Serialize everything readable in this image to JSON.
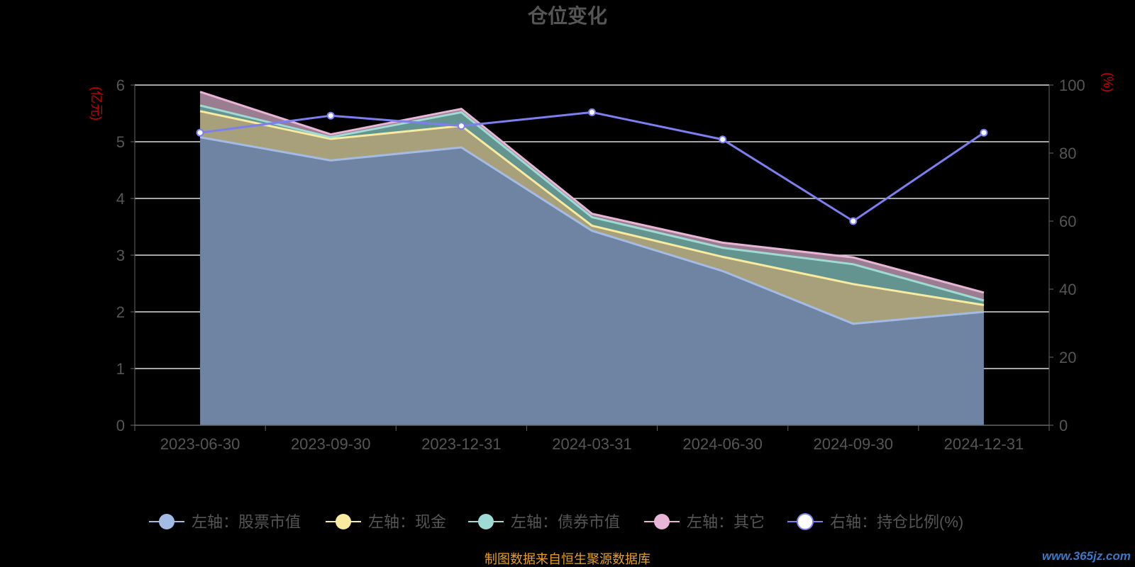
{
  "chart_data": {
    "type": "area",
    "title": "仓位变化",
    "ylabel_left": "(亿元)",
    "ylabel_right": "(%)",
    "categories": [
      "2023-06-30",
      "2023-09-30",
      "2023-12-31",
      "2024-03-31",
      "2024-06-30",
      "2024-09-30",
      "2024-12-31"
    ],
    "left_axis": {
      "min": 0,
      "max": 6,
      "ticks": [
        0,
        1,
        2,
        3,
        4,
        5,
        6
      ]
    },
    "right_axis": {
      "min": 0,
      "max": 100,
      "ticks": [
        0,
        20,
        40,
        60,
        80,
        100
      ]
    },
    "stacked": true,
    "grid": true,
    "legend_placement": "bottom",
    "series": [
      {
        "name": "左轴：股票市值",
        "axis": "left",
        "type": "area",
        "color": "#a3bce6",
        "fill": "#6e84a2",
        "values": [
          5.08,
          4.67,
          4.9,
          3.43,
          2.72,
          1.79,
          2.0
        ]
      },
      {
        "name": "左轴：现金",
        "axis": "left",
        "type": "area",
        "color": "#f8eba0",
        "fill": "#a8a07a",
        "values": [
          0.46,
          0.38,
          0.38,
          0.09,
          0.25,
          0.7,
          0.12
        ]
      },
      {
        "name": "左轴：债券市值",
        "axis": "left",
        "type": "area",
        "color": "#9fdbd5",
        "fill": "#649490",
        "values": [
          0.1,
          0.03,
          0.24,
          0.15,
          0.16,
          0.35,
          0.08
        ]
      },
      {
        "name": "左轴：其它",
        "axis": "left",
        "type": "area",
        "color": "#e8b5d6",
        "fill": "#9a7d91",
        "values": [
          0.24,
          0.05,
          0.06,
          0.06,
          0.09,
          0.12,
          0.14
        ]
      },
      {
        "name": "右轴：持仓比例(%)",
        "axis": "right",
        "type": "line",
        "color": "#7b7ff0",
        "values": [
          86,
          91,
          88,
          92,
          84,
          60,
          86
        ]
      }
    ]
  },
  "footer": {
    "source_text": "制图数据来自恒生聚源数据库",
    "watermark": "www.365jz.com"
  },
  "colors": {
    "background": "#000000",
    "axis_text": "#555555",
    "axis_unit": "#cc0000",
    "title": "#555555",
    "grid": "#dddddd",
    "footer": "#e8a020"
  }
}
